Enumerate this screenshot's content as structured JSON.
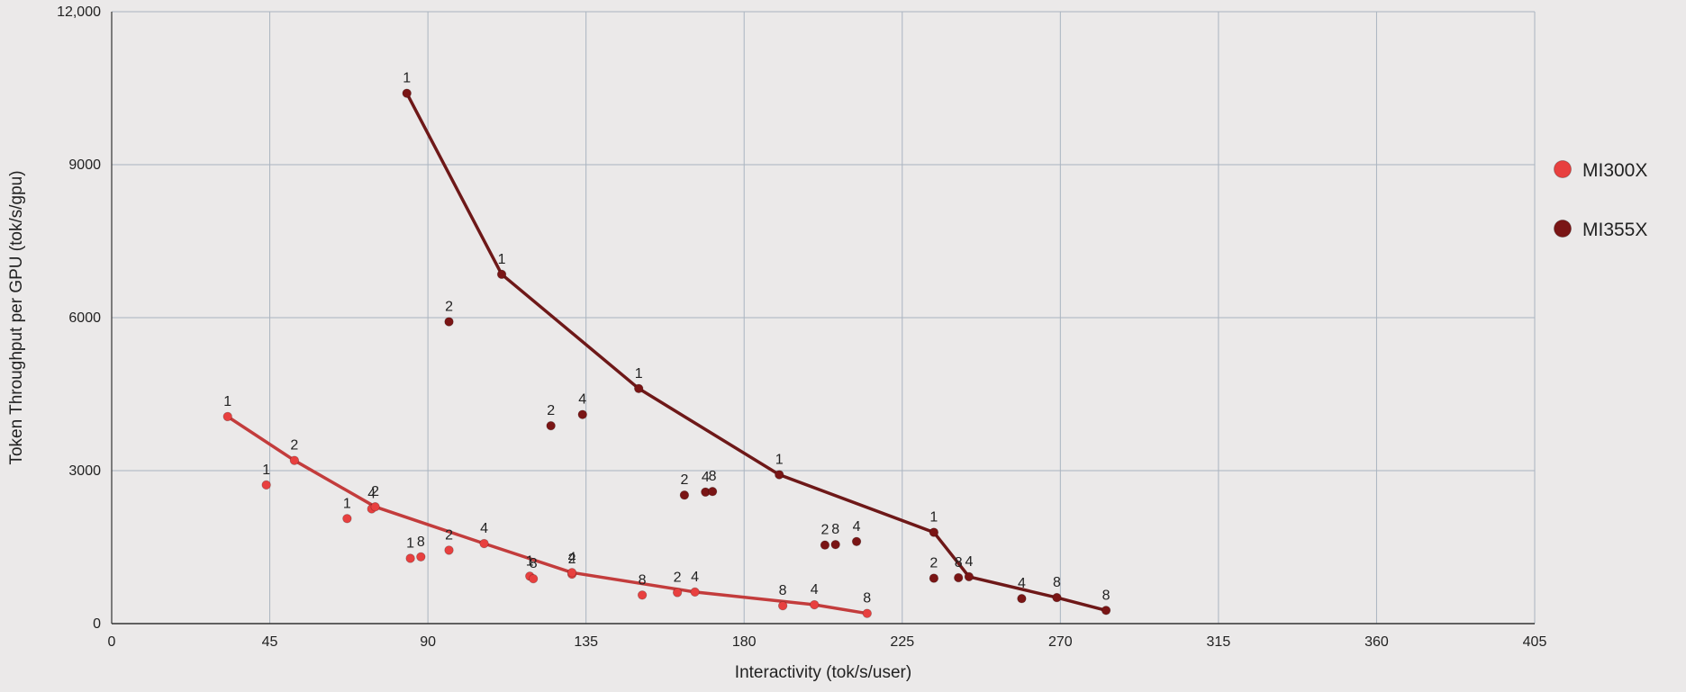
{
  "chart_data": {
    "type": "scatter",
    "title": "",
    "xlabel": "Interactivity (tok/s/user)",
    "ylabel": "Token Throughput per GPU (tok/s/gpu)",
    "xlim": [
      0,
      405
    ],
    "ylim": [
      0,
      12000
    ],
    "x_ticks": [
      "0",
      "45",
      "90",
      "135",
      "180",
      "225",
      "270",
      "315",
      "360",
      "405"
    ],
    "y_ticks": [
      "0",
      "3000",
      "6000",
      "9000",
      "12,000"
    ],
    "grid": true,
    "legend_position": "right",
    "series": [
      {
        "name": "MI300X",
        "color": "#e8403f",
        "line_color": "#c33c3c",
        "points": [
          {
            "x": 33,
            "y": 4060,
            "label": "1"
          },
          {
            "x": 52,
            "y": 3200,
            "label": "2"
          },
          {
            "x": 44,
            "y": 2720,
            "label": "1"
          },
          {
            "x": 67,
            "y": 2060,
            "label": "1"
          },
          {
            "x": 74,
            "y": 2250,
            "label": "4"
          },
          {
            "x": 75,
            "y": 2290,
            "label": "2"
          },
          {
            "x": 85,
            "y": 1280,
            "label": "1"
          },
          {
            "x": 88,
            "y": 1310,
            "label": "8"
          },
          {
            "x": 96,
            "y": 1440,
            "label": "2"
          },
          {
            "x": 106,
            "y": 1570,
            "label": "4"
          },
          {
            "x": 119,
            "y": 930,
            "label": "1"
          },
          {
            "x": 120,
            "y": 880,
            "label": "8"
          },
          {
            "x": 131,
            "y": 970,
            "label": "2"
          },
          {
            "x": 131,
            "y": 1000,
            "label": "4"
          },
          {
            "x": 151,
            "y": 560,
            "label": "8"
          },
          {
            "x": 161,
            "y": 610,
            "label": "2"
          },
          {
            "x": 166,
            "y": 620,
            "label": "4"
          },
          {
            "x": 191,
            "y": 350,
            "label": "8"
          },
          {
            "x": 200,
            "y": 370,
            "label": "4"
          },
          {
            "x": 215,
            "y": 200,
            "label": "8"
          }
        ],
        "frontier": [
          {
            "x": 33,
            "y": 4060
          },
          {
            "x": 52,
            "y": 3200
          },
          {
            "x": 75,
            "y": 2290
          },
          {
            "x": 106,
            "y": 1570
          },
          {
            "x": 131,
            "y": 1000
          },
          {
            "x": 166,
            "y": 620
          },
          {
            "x": 200,
            "y": 370
          },
          {
            "x": 215,
            "y": 200
          }
        ]
      },
      {
        "name": "MI355X",
        "color": "#7a1515",
        "line_color": "#6e1818",
        "points": [
          {
            "x": 84,
            "y": 10400,
            "label": "1"
          },
          {
            "x": 111,
            "y": 6850,
            "label": "1"
          },
          {
            "x": 96,
            "y": 5920,
            "label": "2"
          },
          {
            "x": 150,
            "y": 4610,
            "label": "1"
          },
          {
            "x": 125,
            "y": 3880,
            "label": "2"
          },
          {
            "x": 134,
            "y": 4100,
            "label": "4"
          },
          {
            "x": 190,
            "y": 2920,
            "label": "1"
          },
          {
            "x": 163,
            "y": 2520,
            "label": "2"
          },
          {
            "x": 169,
            "y": 2580,
            "label": "4"
          },
          {
            "x": 171,
            "y": 2590,
            "label": "8"
          },
          {
            "x": 203,
            "y": 1540,
            "label": "2"
          },
          {
            "x": 206,
            "y": 1550,
            "label": "8"
          },
          {
            "x": 212,
            "y": 1610,
            "label": "4"
          },
          {
            "x": 234,
            "y": 1790,
            "label": "1"
          },
          {
            "x": 234,
            "y": 890,
            "label": "2"
          },
          {
            "x": 241,
            "y": 900,
            "label": "8"
          },
          {
            "x": 244,
            "y": 920,
            "label": "4"
          },
          {
            "x": 259,
            "y": 490,
            "label": "4"
          },
          {
            "x": 269,
            "y": 510,
            "label": "8"
          },
          {
            "x": 283,
            "y": 260,
            "label": "8"
          }
        ],
        "frontier": [
          {
            "x": 84,
            "y": 10400
          },
          {
            "x": 111,
            "y": 6850
          },
          {
            "x": 150,
            "y": 4610
          },
          {
            "x": 190,
            "y": 2920
          },
          {
            "x": 234,
            "y": 1790
          },
          {
            "x": 244,
            "y": 920
          },
          {
            "x": 269,
            "y": 510
          },
          {
            "x": 283,
            "y": 260
          }
        ]
      }
    ]
  }
}
